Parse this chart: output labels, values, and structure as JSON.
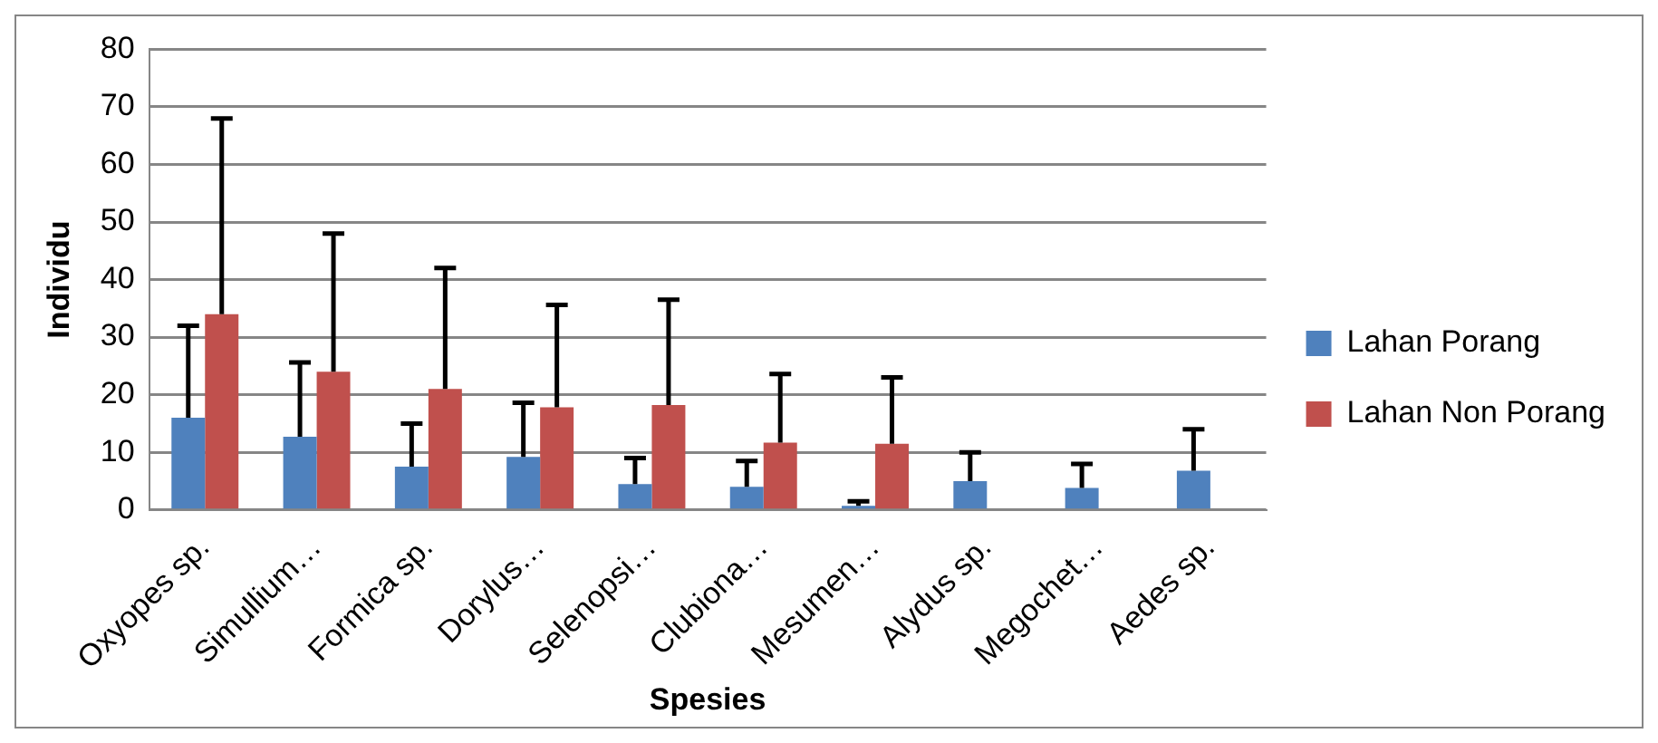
{
  "chart_data": {
    "type": "bar",
    "xlabel": "Spesies",
    "ylabel": "Individu",
    "categories": [
      "Oxyopes sp.",
      "Simullium…",
      "Formica sp.",
      "Dorylus…",
      "Selenopsi…",
      "Clubiona…",
      "Mesumen…",
      "Alydus sp.",
      "Megochet…",
      "Aedes sp."
    ],
    "series": [
      {
        "name": "Lahan Porang",
        "color": "#4f81bd",
        "values": [
          16,
          12.7,
          7.5,
          9.2,
          4.5,
          4,
          0.7,
          5,
          3.8,
          6.8
        ],
        "errors": [
          [
            16,
            32
          ],
          [
            12.7,
            25.6
          ],
          [
            7.5,
            15
          ],
          [
            9.2,
            18.6
          ],
          [
            4.5,
            9
          ],
          [
            4,
            8.5
          ],
          [
            0.7,
            1.5
          ],
          [
            5,
            10
          ],
          [
            3.8,
            8
          ],
          [
            6.8,
            14
          ]
        ]
      },
      {
        "name": "Lahan Non Porang",
        "color": "#c0504d",
        "values": [
          34,
          24,
          21,
          17.8,
          18.2,
          11.7,
          11.5,
          null,
          null,
          null
        ],
        "errors": [
          [
            34,
            68
          ],
          [
            24,
            48
          ],
          [
            21,
            42
          ],
          [
            17.8,
            35.6
          ],
          [
            18.2,
            36.5
          ],
          [
            11.7,
            23.6
          ],
          [
            11.5,
            23
          ],
          null,
          null,
          null
        ]
      }
    ],
    "ylim": [
      0,
      80
    ],
    "yticks": [
      0,
      10,
      20,
      30,
      40,
      50,
      60,
      70,
      80
    ],
    "grid": "y",
    "legend": "right"
  }
}
